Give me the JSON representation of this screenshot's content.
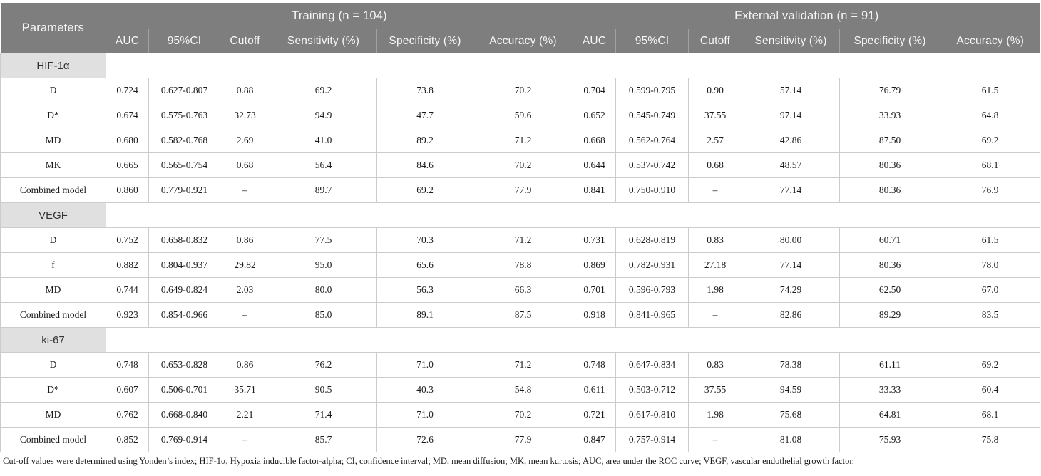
{
  "table": {
    "param_header": "Parameters",
    "groups": [
      {
        "label": "Training (n = 104)"
      },
      {
        "label": "External validation (n = 91)"
      }
    ],
    "sub_headers": [
      "AUC",
      "95%CI",
      "Cutoff",
      "Sensitivity (%)",
      "Specificity (%)",
      "Accuracy (%)"
    ],
    "sections": [
      {
        "label": "HIF-1α",
        "rows": [
          {
            "param": "D",
            "cells": [
              "0.724",
              "0.627-0.807",
              "0.88",
              "69.2",
              "73.8",
              "70.2",
              "0.704",
              "0.599-0.795",
              "0.90",
              "57.14",
              "76.79",
              "61.5"
            ]
          },
          {
            "param": "D*",
            "cells": [
              "0.674",
              "0.575-0.763",
              "32.73",
              "94.9",
              "47.7",
              "59.6",
              "0.652",
              "0.545-0.749",
              "37.55",
              "97.14",
              "33.93",
              "64.8"
            ]
          },
          {
            "param": "MD",
            "cells": [
              "0.680",
              "0.582-0.768",
              "2.69",
              "41.0",
              "89.2",
              "71.2",
              "0.668",
              "0.562-0.764",
              "2.57",
              "42.86",
              "87.50",
              "69.2"
            ]
          },
          {
            "param": "MK",
            "cells": [
              "0.665",
              "0.565-0.754",
              "0.68",
              "56.4",
              "84.6",
              "70.2",
              "0.644",
              "0.537-0.742",
              "0.68",
              "48.57",
              "80.36",
              "68.1"
            ]
          },
          {
            "param": "Combined model",
            "cells": [
              "0.860",
              "0.779-0.921",
              "–",
              "89.7",
              "69.2",
              "77.9",
              "0.841",
              "0.750-0.910",
              "–",
              "77.14",
              "80.36",
              "76.9"
            ]
          }
        ]
      },
      {
        "label": "VEGF",
        "rows": [
          {
            "param": "D",
            "cells": [
              "0.752",
              "0.658-0.832",
              "0.86",
              "77.5",
              "70.3",
              "71.2",
              "0.731",
              "0.628-0.819",
              "0.83",
              "80.00",
              "60.71",
              "61.5"
            ]
          },
          {
            "param": "f",
            "cells": [
              "0.882",
              "0.804-0.937",
              "29.82",
              "95.0",
              "65.6",
              "78.8",
              "0.869",
              "0.782-0.931",
              "27.18",
              "77.14",
              "80.36",
              "78.0"
            ]
          },
          {
            "param": "MD",
            "cells": [
              "0.744",
              "0.649-0.824",
              "2.03",
              "80.0",
              "56.3",
              "66.3",
              "0.701",
              "0.596-0.793",
              "1.98",
              "74.29",
              "62.50",
              "67.0"
            ]
          },
          {
            "param": "Combined model",
            "cells": [
              "0.923",
              "0.854-0.966",
              "–",
              "85.0",
              "89.1",
              "87.5",
              "0.918",
              "0.841-0.965",
              "–",
              "82.86",
              "89.29",
              "83.5"
            ]
          }
        ]
      },
      {
        "label": "ki-67",
        "rows": [
          {
            "param": "D",
            "cells": [
              "0.748",
              "0.653-0.828",
              "0.86",
              "76.2",
              "71.0",
              "71.2",
              "0.748",
              "0.647-0.834",
              "0.83",
              "78.38",
              "61.11",
              "69.2"
            ]
          },
          {
            "param": "D*",
            "cells": [
              "0.607",
              "0.506-0.701",
              "35.71",
              "90.5",
              "40.3",
              "54.8",
              "0.611",
              "0.503-0.712",
              "37.55",
              "94.59",
              "33.33",
              "60.4"
            ]
          },
          {
            "param": "MD",
            "cells": [
              "0.762",
              "0.668-0.840",
              "2.21",
              "71.4",
              "71.0",
              "70.2",
              "0.721",
              "0.617-0.810",
              "1.98",
              "75.68",
              "64.81",
              "68.1"
            ]
          },
          {
            "param": "Combined model",
            "cells": [
              "0.852",
              "0.769-0.914",
              "–",
              "85.7",
              "72.6",
              "77.9",
              "0.847",
              "0.757-0.914",
              "–",
              "81.08",
              "75.93",
              "75.8"
            ]
          }
        ]
      }
    ],
    "footnote": "Cut-off values were determined using Yonden’s index; HIF-1α, Hypoxia inducible factor-alpha; CI, confidence interval; MD, mean diffusion; MK, mean kurtosis; AUC, area under the ROC curve; VEGF, vascular endothelial growth factor.",
    "colors": {
      "header_bg": "#7e7e7e",
      "header_text": "#f7f7f7",
      "header_separator": "#a2a2a2",
      "section_bg": "#e0e0e0",
      "cell_border": "#cccccc",
      "data_text": "#1b1b1b"
    }
  }
}
